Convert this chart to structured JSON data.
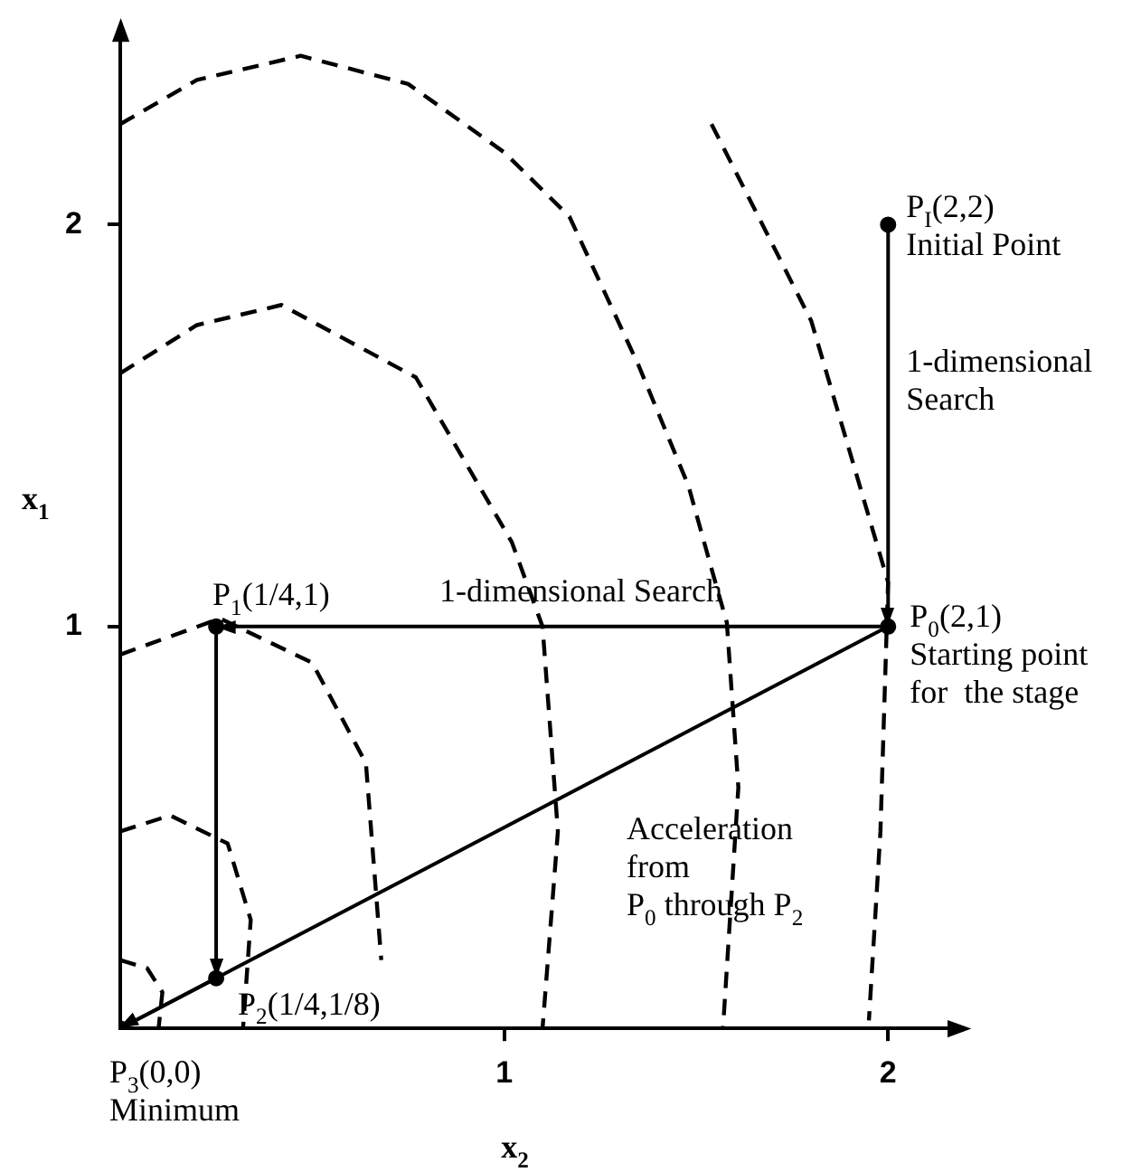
{
  "chart_data": {
    "type": "line",
    "xlabel": "x$_{2}$",
    "ylabel": "x$_{1}$",
    "xlim": [
      0,
      2.15
    ],
    "ylim": [
      0,
      2.45
    ],
    "xticks": [
      1,
      2
    ],
    "yticks": [
      1,
      2
    ],
    "grid": false,
    "legend": false,
    "marker": "none",
    "line_style": "dashed",
    "series": [
      {
        "color": "#000000",
        "x": [
          0,
          0.2,
          0.47,
          0.75,
          1.0,
          1.17,
          1.35,
          1.48,
          1.55,
          1.58,
          1.61,
          1.57
        ],
        "values": [
          2.25,
          2.36,
          2.42,
          2.35,
          2.18,
          2.02,
          1.65,
          1.35,
          1.11,
          1.01,
          0.6,
          0
        ]
      },
      {
        "color": "#000000",
        "x": [
          0,
          0.2,
          0.42,
          0.77,
          1.02,
          1.1,
          1.14,
          1.1
        ],
        "values": [
          1.63,
          1.75,
          1.8,
          1.62,
          1.21,
          1.0,
          0.49,
          0
        ]
      },
      {
        "color": "#000000",
        "x": [
          1.54,
          1.8,
          2.0,
          1.98,
          1.95
        ],
        "values": [
          2.25,
          1.76,
          1.11,
          0.49,
          0.02
        ]
      },
      {
        "color": "#000000",
        "x": [
          0,
          0.26,
          0.5,
          0.64,
          0.68
        ],
        "values": [
          0.93,
          1.02,
          0.91,
          0.66,
          0.17
        ]
      },
      {
        "color": "#000000",
        "x": [
          0,
          0.13,
          0.28,
          0.34,
          0.32
        ],
        "values": [
          0.49,
          0.53,
          0.46,
          0.27,
          0
        ]
      },
      {
        "color": "#000000",
        "x": [
          0,
          0.07,
          0.11,
          0.1
        ],
        "values": [
          0.17,
          0.15,
          0.09,
          0
        ]
      },
      {
        "color": "#000000",
        "line_style": "solid",
        "marker": "circle",
        "x": [
          2,
          2,
          0.25,
          0.25,
          0
        ],
        "values": [
          2,
          1,
          1,
          0.125,
          0
        ]
      },
      {
        "color": "#000000",
        "line_style": "solid",
        "x": [
          2,
          0
        ],
        "values": [
          1,
          0
        ]
      }
    ],
    "annotations": [
      {
        "text": "P$_{I}$(2,2)\nInitial Point",
        "x": 2,
        "y": 2
      },
      {
        "text": "1-dimensional\nSearch",
        "x": 2,
        "y": 1.5
      },
      {
        "text": "P$_{0}$(2,1)\nStarting point\nfor  the stage",
        "x": 2,
        "y": 1
      },
      {
        "text": "P$_{1}$(1/4,1)",
        "x": 0.25,
        "y": 1
      },
      {
        "text": "1-dimensional Search",
        "x": 1.2,
        "y": 1
      },
      {
        "text": "P$_{2}$(1/4,1/8)",
        "x": 0.25,
        "y": 0.125
      },
      {
        "text": "P$_{3}$(0,0)\nMinimum",
        "x": 0,
        "y": 0
      },
      {
        "text": "Acceleration\nfrom\nP$_{0}$ through P$_{2}$",
        "x": 1.3,
        "y": 0.65
      }
    ]
  }
}
